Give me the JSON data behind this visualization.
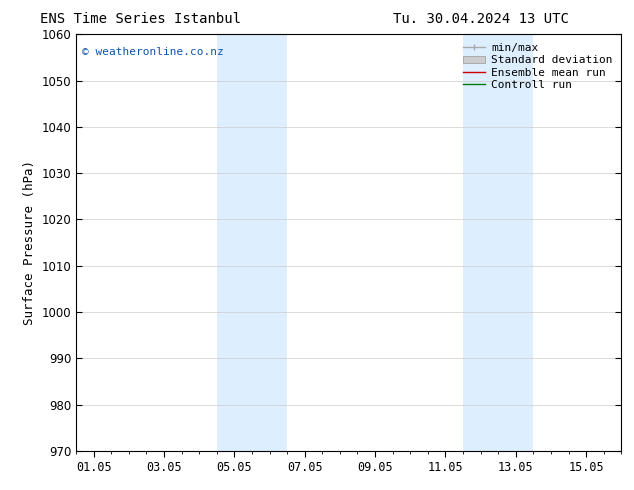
{
  "title_left": "ENS Time Series Istanbul",
  "title_right": "Tu. 30.04.2024 13 UTC",
  "ylabel": "Surface Pressure (hPa)",
  "ylim": [
    970,
    1060
  ],
  "yticks": [
    970,
    980,
    990,
    1000,
    1010,
    1020,
    1030,
    1040,
    1050,
    1060
  ],
  "xtick_labels": [
    "01.05",
    "03.05",
    "05.05",
    "07.05",
    "09.05",
    "11.05",
    "13.05",
    "15.05"
  ],
  "xtick_positions": [
    0,
    2,
    4,
    6,
    8,
    10,
    12,
    14
  ],
  "xlim": [
    -0.5,
    15.0
  ],
  "shaded_bands": [
    {
      "xmin": 3.5,
      "xmax": 5.5,
      "color": "#ddeeff"
    },
    {
      "xmin": 10.5,
      "xmax": 12.5,
      "color": "#ddeeff"
    }
  ],
  "watermark": "© weatheronline.co.nz",
  "watermark_color": "#1155aa",
  "legend_entries": [
    {
      "label": "min/max",
      "type": "line",
      "color": "#aaaaaa",
      "lw": 1.0
    },
    {
      "label": "Standard deviation",
      "type": "box",
      "color": "#cccccc"
    },
    {
      "label": "Ensemble mean run",
      "type": "line",
      "color": "#cc0000",
      "lw": 1.0
    },
    {
      "label": "Controll run",
      "type": "line",
      "color": "#007700",
      "lw": 1.0
    }
  ],
  "bg_color": "#ffffff",
  "grid_color": "#cccccc",
  "title_fontsize": 10,
  "axis_fontsize": 9,
  "tick_fontsize": 8.5,
  "legend_fontsize": 8
}
